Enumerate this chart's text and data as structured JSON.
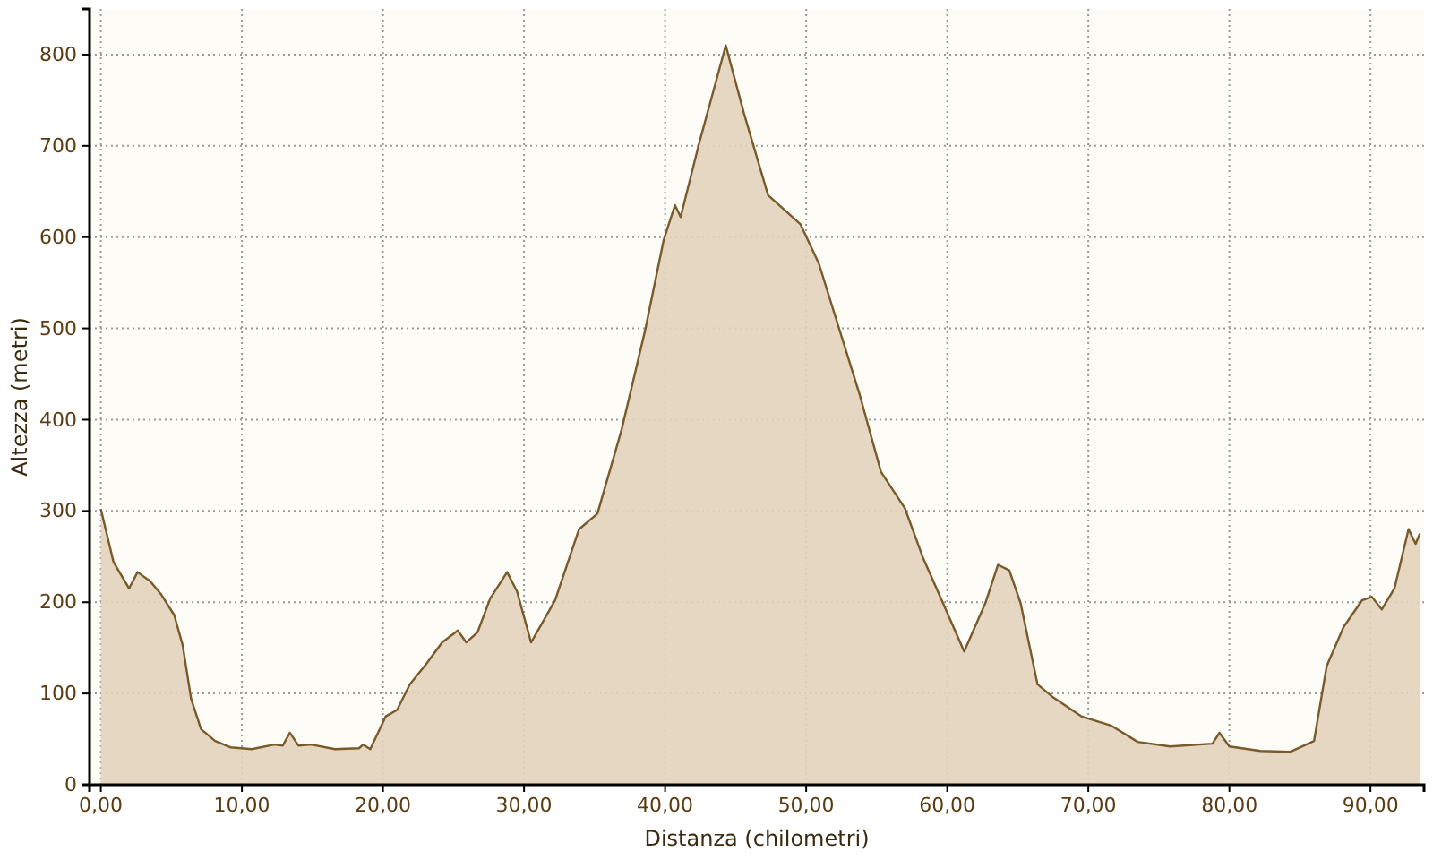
{
  "chart_data": {
    "type": "area",
    "xlabel": "Distanza (chilometri)",
    "ylabel": "Altezza (metri)",
    "xlim": [
      -0.8,
      93.8
    ],
    "ylim": [
      0,
      850
    ],
    "xticks": [
      {
        "value": 0,
        "label": "0,00"
      },
      {
        "value": 10,
        "label": "10,00"
      },
      {
        "value": 20,
        "label": "20,00"
      },
      {
        "value": 30,
        "label": "30,00"
      },
      {
        "value": 40,
        "label": "40,00"
      },
      {
        "value": 50,
        "label": "50,00"
      },
      {
        "value": 60,
        "label": "60,00"
      },
      {
        "value": 70,
        "label": "70,00"
      },
      {
        "value": 80,
        "label": "80,00"
      },
      {
        "value": 90,
        "label": "90,00"
      }
    ],
    "yticks": [
      0,
      100,
      200,
      300,
      400,
      500,
      600,
      700,
      800
    ],
    "grid": true,
    "series": [
      {
        "color": "#7a5a2a",
        "x": [
          0,
          0.9,
          2.0,
          2.6,
          3.5,
          4.3,
          5.2,
          5.8,
          6.4,
          7.1,
          8.1,
          9.2,
          10.7,
          12.3,
          12.9,
          13.4,
          14.0,
          14.9,
          16.6,
          18.3,
          18.6,
          19.1,
          20.2,
          21.0,
          21.9,
          23.1,
          24.2,
          25.3,
          25.9,
          26.7,
          27.6,
          28.8,
          29.5,
          30.5,
          32.2,
          33.9,
          35.2,
          36.9,
          38.6,
          39.9,
          40.7,
          41.1,
          42.4,
          44.3,
          45.6,
          47.3,
          49.6,
          50.9,
          53.8,
          55.3,
          57.0,
          58.3,
          59.7,
          61.2,
          62.7,
          63.6,
          64.4,
          65.2,
          66.4,
          67.4,
          69.5,
          71.6,
          73.5,
          75.8,
          78.8,
          79.3,
          80.0,
          82.2,
          84.3,
          86.0,
          86.9,
          88.1,
          89.4,
          90.1,
          90.8,
          91.7,
          92.7,
          93.2,
          93.5
        ],
        "values": [
          302,
          244,
          215,
          233,
          223,
          208,
          186,
          153,
          94,
          61,
          48,
          41,
          39,
          44,
          43,
          57,
          43,
          44,
          39,
          40,
          44,
          39,
          75,
          82,
          110,
          133,
          156,
          169,
          156,
          167,
          204,
          233,
          212,
          156,
          202,
          280,
          297,
          388,
          499,
          597,
          635,
          622,
          702,
          810,
          735,
          646,
          614,
          571,
          427,
          343,
          303,
          248,
          199,
          146,
          199,
          241,
          235,
          199,
          110,
          97,
          75,
          65,
          47,
          42,
          45,
          57,
          42,
          37,
          36,
          48,
          130,
          173,
          202,
          206,
          192,
          215,
          280,
          264,
          275
        ]
      }
    ]
  }
}
